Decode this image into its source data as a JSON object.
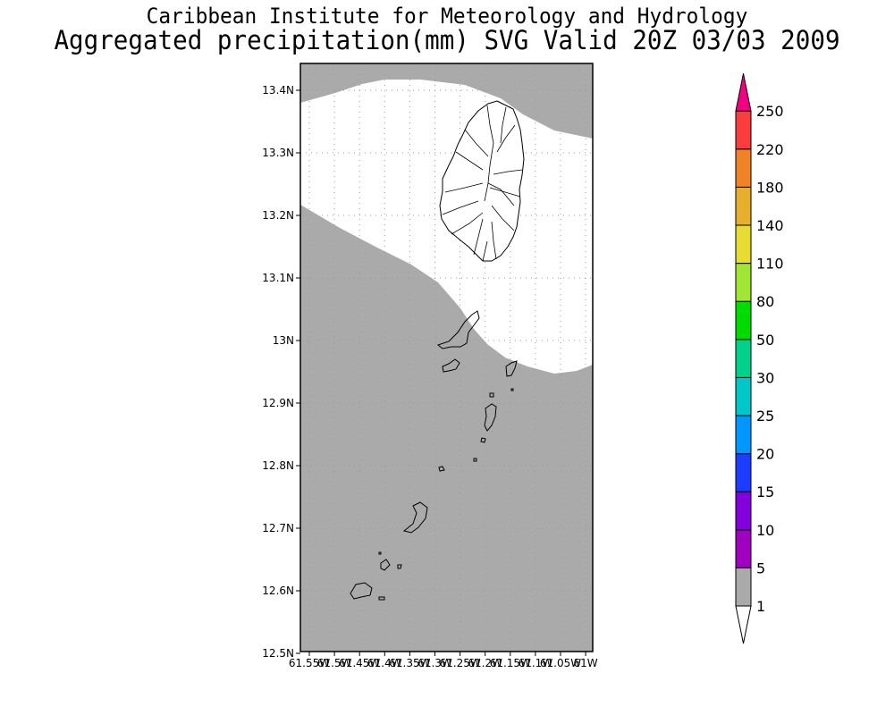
{
  "header": {
    "institute": "Caribbean Institute for Meteorology and Hydrology",
    "product": "Aggregated precipitation(mm) SVG Valid 20Z 03/03 2009"
  },
  "map": {
    "region": "St. Vincent and the Grenadines",
    "lat_labels": [
      "13.4N",
      "13.3N",
      "13.2N",
      "13.1N",
      "13N",
      "12.9N",
      "12.8N",
      "12.7N",
      "12.6N",
      "12.5N"
    ],
    "lon_labels": [
      "61.55W",
      "61.5W",
      "61.45W",
      "61.4W",
      "61.35W",
      "61.3W",
      "61.25W",
      "61.2W",
      "61.15W",
      "61.1W",
      "61.05W",
      "61W"
    ],
    "shaded_category": "1-5 mm",
    "colors": {
      "shade": "#aaaaaa",
      "coast": "#000000",
      "grid": "#999999"
    }
  },
  "legend": {
    "levels": [
      "1",
      "5",
      "10",
      "15",
      "20",
      "25",
      "30",
      "50",
      "80",
      "110",
      "140",
      "180",
      "220",
      "250"
    ],
    "colors": [
      "#aaaaaa",
      "#a000c0",
      "#8200dc",
      "#1e3cff",
      "#0096ff",
      "#00c8c8",
      "#00d28c",
      "#00dc00",
      "#a0e632",
      "#e6dc32",
      "#e6af2d",
      "#f08228",
      "#fa3c3c",
      "#f00082"
    ]
  }
}
